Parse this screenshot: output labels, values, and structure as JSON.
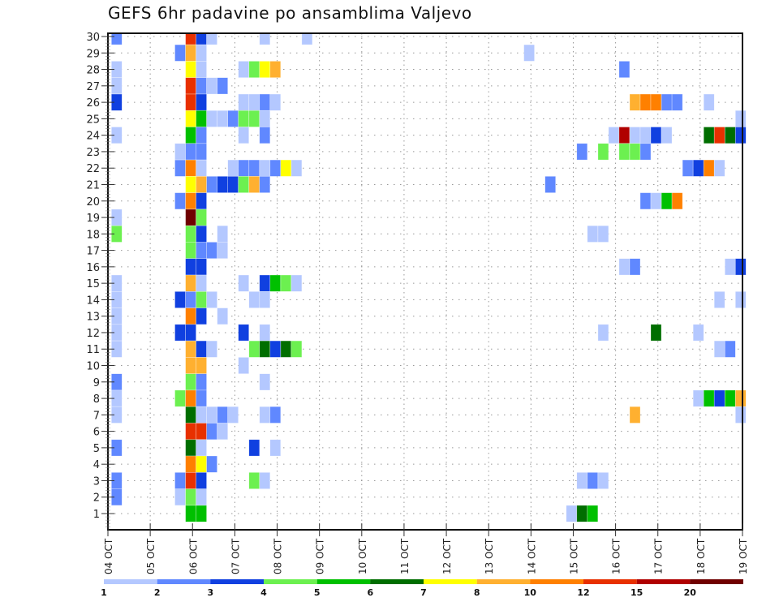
{
  "chart_data": {
    "type": "heatmap",
    "title": "GEFS 6hr padavine po ansamblima Valjevo",
    "xlabel": "",
    "ylabel": "",
    "x_unit": "6-hour step index from 04 OCT 00Z (cell center hour = 6*k+5)",
    "x_tick_labels": [
      "04 OCT",
      "05 OCT",
      "06 OCT",
      "07 OCT",
      "08 OCT",
      "09 OCT",
      "10 OCT",
      "11 OCT",
      "12 OCT",
      "13 OCT",
      "14 OCT",
      "15 OCT",
      "16 OCT",
      "17 OCT",
      "18 OCT",
      "19 OCT"
    ],
    "y_tick_labels": [
      "1",
      "2",
      "3",
      "4",
      "5",
      "6",
      "7",
      "8",
      "9",
      "10",
      "11",
      "12",
      "13",
      "14",
      "15",
      "16",
      "17",
      "18",
      "19",
      "20",
      "21",
      "22",
      "23",
      "24",
      "25",
      "26",
      "27",
      "28",
      "29",
      "30"
    ],
    "xlim_days": [
      4,
      19
    ],
    "ylim": [
      0,
      30
    ],
    "grid": true,
    "legend": {
      "placement": "bottom",
      "bounds": [
        "1",
        "2",
        "3",
        "4",
        "5",
        "6",
        "7",
        "8",
        "10",
        "12",
        "15",
        "20"
      ],
      "colors": [
        "#b4c8ff",
        "#6088ff",
        "#1040e0",
        "#6cf050",
        "#00c000",
        "#006e00",
        "#ffff00",
        "#ffb030",
        "#ff8000",
        "#e83000",
        "#b00000",
        "#700000"
      ]
    },
    "cells": [
      {
        "member": 30,
        "values": [
          [
            0,
            2.5
          ],
          [
            7,
            13.5
          ],
          [
            8,
            3.5
          ],
          [
            9,
            1.5
          ],
          [
            14,
            1.5
          ],
          [
            18,
            1.5
          ]
        ]
      },
      {
        "member": 29,
        "values": [
          [
            6,
            2.5
          ],
          [
            7,
            9
          ],
          [
            8,
            1.5
          ],
          [
            39,
            1.5
          ]
        ]
      },
      {
        "member": 28,
        "values": [
          [
            0,
            1.5
          ],
          [
            7,
            7.5
          ],
          [
            8,
            1.5
          ],
          [
            12,
            1.5
          ],
          [
            13,
            4.5
          ],
          [
            14,
            7.5
          ],
          [
            15,
            9
          ],
          [
            48,
            2.5
          ]
        ]
      },
      {
        "member": 27,
        "values": [
          [
            0,
            1.5
          ],
          [
            7,
            13.5
          ],
          [
            8,
            2.5
          ],
          [
            9,
            1.5
          ],
          [
            10,
            2.5
          ]
        ]
      },
      {
        "member": 26,
        "values": [
          [
            0,
            3.5
          ],
          [
            7,
            13.5
          ],
          [
            8,
            3.5
          ],
          [
            12,
            1.5
          ],
          [
            13,
            1.5
          ],
          [
            14,
            2.5
          ],
          [
            15,
            1.5
          ],
          [
            49,
            9
          ],
          [
            50,
            11
          ],
          [
            51,
            11
          ],
          [
            52,
            2.5
          ],
          [
            53,
            2.5
          ],
          [
            56,
            1.5
          ]
        ]
      },
      {
        "member": 25,
        "values": [
          [
            7,
            7.5
          ],
          [
            8,
            5.5
          ],
          [
            9,
            1.5
          ],
          [
            10,
            1.5
          ],
          [
            11,
            2.5
          ],
          [
            12,
            4.5
          ],
          [
            13,
            4.5
          ],
          [
            14,
            1.5
          ],
          [
            59,
            1.5
          ]
        ]
      },
      {
        "member": 24,
        "values": [
          [
            0,
            1.5
          ],
          [
            7,
            5.5
          ],
          [
            8,
            2.5
          ],
          [
            12,
            1.5
          ],
          [
            14,
            2.5
          ],
          [
            47,
            1.5
          ],
          [
            48,
            17.5
          ],
          [
            49,
            1.5
          ],
          [
            50,
            1.5
          ],
          [
            51,
            3.5
          ],
          [
            52,
            1.5
          ],
          [
            56,
            6.5
          ],
          [
            57,
            13.5
          ],
          [
            58,
            6.5
          ],
          [
            59,
            3.5
          ]
        ]
      },
      {
        "member": 23,
        "values": [
          [
            6,
            1.5
          ],
          [
            7,
            2.5
          ],
          [
            8,
            2.5
          ],
          [
            44,
            2.5
          ],
          [
            46,
            4.5
          ],
          [
            48,
            4.5
          ],
          [
            49,
            4.5
          ],
          [
            50,
            2.5
          ]
        ]
      },
      {
        "member": 22,
        "values": [
          [
            6,
            2.5
          ],
          [
            7,
            11
          ],
          [
            8,
            1.5
          ],
          [
            11,
            1.5
          ],
          [
            12,
            2.5
          ],
          [
            13,
            2.5
          ],
          [
            14,
            1.5
          ],
          [
            15,
            2.5
          ],
          [
            16,
            7.5
          ],
          [
            17,
            1.5
          ],
          [
            54,
            2.5
          ],
          [
            55,
            3.5
          ],
          [
            56,
            11
          ],
          [
            57,
            1.5
          ]
        ]
      },
      {
        "member": 21,
        "values": [
          [
            7,
            7.5
          ],
          [
            8,
            9
          ],
          [
            9,
            2.5
          ],
          [
            10,
            3.5
          ],
          [
            11,
            3.5
          ],
          [
            12,
            4.5
          ],
          [
            13,
            9
          ],
          [
            14,
            2.5
          ],
          [
            41,
            2.5
          ]
        ]
      },
      {
        "member": 20,
        "values": [
          [
            6,
            2.5
          ],
          [
            7,
            11
          ],
          [
            8,
            3.5
          ],
          [
            50,
            2.5
          ],
          [
            51,
            1.5
          ],
          [
            52,
            5.5
          ],
          [
            53,
            11
          ]
        ]
      },
      {
        "member": 19,
        "values": [
          [
            0,
            1.5
          ],
          [
            7,
            22
          ],
          [
            8,
            4.5
          ]
        ]
      },
      {
        "member": 18,
        "values": [
          [
            0,
            4.5
          ],
          [
            7,
            4.5
          ],
          [
            8,
            3.5
          ],
          [
            10,
            1.5
          ],
          [
            45,
            1.5
          ],
          [
            46,
            1.5
          ]
        ]
      },
      {
        "member": 17,
        "values": [
          [
            7,
            4.5
          ],
          [
            8,
            2.5
          ],
          [
            9,
            2.5
          ],
          [
            10,
            1.5
          ]
        ]
      },
      {
        "member": 16,
        "values": [
          [
            7,
            3.5
          ],
          [
            8,
            3.5
          ],
          [
            48,
            1.5
          ],
          [
            49,
            2.5
          ],
          [
            58,
            1.5
          ],
          [
            59,
            3.5
          ]
        ]
      },
      {
        "member": 15,
        "values": [
          [
            0,
            1.5
          ],
          [
            7,
            9
          ],
          [
            8,
            1.5
          ],
          [
            12,
            1.5
          ],
          [
            14,
            3.5
          ],
          [
            15,
            5.5
          ],
          [
            16,
            4.5
          ],
          [
            17,
            1.5
          ]
        ]
      },
      {
        "member": 14,
        "values": [
          [
            0,
            1.5
          ],
          [
            6,
            3.5
          ],
          [
            7,
            2.5
          ],
          [
            8,
            4.5
          ],
          [
            9,
            1.5
          ],
          [
            13,
            1.5
          ],
          [
            14,
            1.5
          ],
          [
            57,
            1.5
          ],
          [
            59,
            1.5
          ]
        ]
      },
      {
        "member": 13,
        "values": [
          [
            0,
            1.5
          ],
          [
            7,
            11
          ],
          [
            8,
            3.5
          ],
          [
            10,
            1.5
          ]
        ]
      },
      {
        "member": 12,
        "values": [
          [
            0,
            1.5
          ],
          [
            6,
            3.5
          ],
          [
            7,
            3.5
          ],
          [
            12,
            3.5
          ],
          [
            14,
            1.5
          ],
          [
            46,
            1.5
          ],
          [
            51,
            6.5
          ],
          [
            55,
            1.5
          ]
        ]
      },
      {
        "member": 11,
        "values": [
          [
            0,
            1.5
          ],
          [
            7,
            9
          ],
          [
            8,
            3.5
          ],
          [
            9,
            1.5
          ],
          [
            13,
            4.5
          ],
          [
            14,
            6.5
          ],
          [
            15,
            3.5
          ],
          [
            16,
            6.5
          ],
          [
            17,
            4.5
          ],
          [
            57,
            1.5
          ],
          [
            58,
            2.5
          ]
        ]
      },
      {
        "member": 10,
        "values": [
          [
            7,
            9
          ],
          [
            8,
            9
          ],
          [
            12,
            1.5
          ]
        ]
      },
      {
        "member": 9,
        "values": [
          [
            0,
            2.5
          ],
          [
            7,
            4.5
          ],
          [
            8,
            2.5
          ],
          [
            14,
            1.5
          ]
        ]
      },
      {
        "member": 8,
        "values": [
          [
            0,
            1.5
          ],
          [
            6,
            4.5
          ],
          [
            7,
            11
          ],
          [
            8,
            2.5
          ],
          [
            55,
            1.5
          ],
          [
            56,
            5.5
          ],
          [
            57,
            3.5
          ],
          [
            58,
            5.5
          ],
          [
            59,
            9
          ]
        ]
      },
      {
        "member": 7,
        "values": [
          [
            0,
            1.5
          ],
          [
            7,
            6.5
          ],
          [
            8,
            1.5
          ],
          [
            9,
            1.5
          ],
          [
            10,
            2.5
          ],
          [
            11,
            1.5
          ],
          [
            14,
            1.5
          ],
          [
            15,
            2.5
          ],
          [
            49,
            9
          ],
          [
            59,
            1.5
          ]
        ]
      },
      {
        "member": 6,
        "values": [
          [
            7,
            13.5
          ],
          [
            8,
            13.5
          ],
          [
            9,
            2.5
          ],
          [
            10,
            1.5
          ]
        ]
      },
      {
        "member": 5,
        "values": [
          [
            0,
            2.5
          ],
          [
            7,
            6.5
          ],
          [
            8,
            1.5
          ],
          [
            13,
            3.5
          ],
          [
            15,
            1.5
          ]
        ]
      },
      {
        "member": 4,
        "values": [
          [
            7,
            11
          ],
          [
            8,
            7.5
          ],
          [
            9,
            2.5
          ]
        ]
      },
      {
        "member": 3,
        "values": [
          [
            0,
            2.5
          ],
          [
            6,
            2.5
          ],
          [
            7,
            13.5
          ],
          [
            8,
            3.5
          ],
          [
            13,
            4.5
          ],
          [
            14,
            1.5
          ],
          [
            44,
            1.5
          ],
          [
            45,
            2.5
          ],
          [
            46,
            1.5
          ]
        ]
      },
      {
        "member": 2,
        "values": [
          [
            0,
            2.5
          ],
          [
            6,
            1.5
          ],
          [
            7,
            4.5
          ],
          [
            8,
            1.5
          ]
        ]
      },
      {
        "member": 1,
        "values": [
          [
            7,
            5.5
          ],
          [
            8,
            5.5
          ],
          [
            43,
            1.5
          ],
          [
            44,
            6.5
          ],
          [
            45,
            5.5
          ]
        ]
      },
      {
        "member": 0,
        "values": []
      }
    ]
  }
}
